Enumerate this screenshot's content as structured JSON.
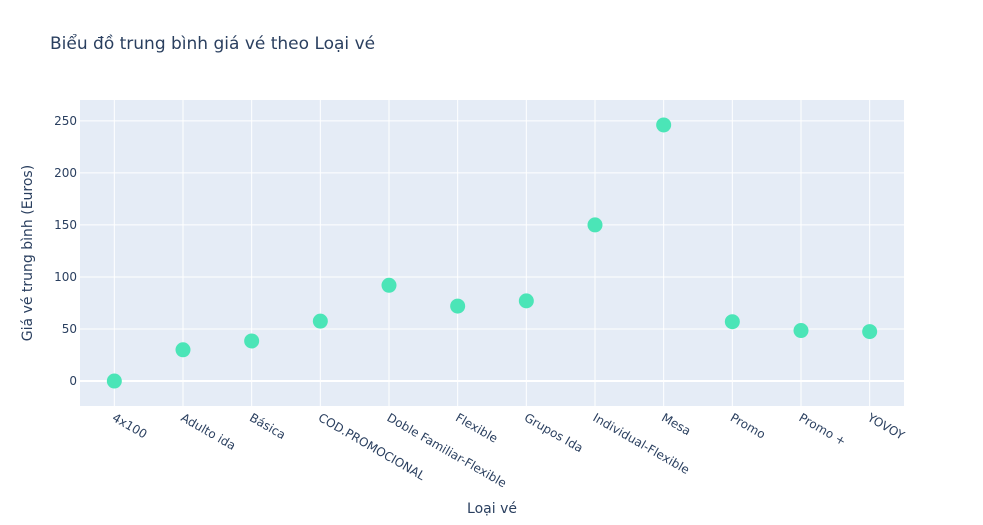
{
  "chart_data": {
    "type": "scatter",
    "title": "Biểu đồ trung bình giá vé theo Loại vé",
    "xlabel": "Loại vé",
    "ylabel": "Giá vé trung bình (Euros)",
    "categories": [
      "4x100",
      "Adulto ida",
      "Básica",
      "COD.PROMOCIONAL",
      "Doble Familiar-Flexible",
      "Flexible",
      "Grupos Ida",
      "Individual-Flexible",
      "Mesa",
      "Promo",
      "Promo +",
      "YOVOY"
    ],
    "values": [
      0,
      30,
      38.5,
      57.5,
      92,
      72,
      77,
      150,
      246,
      57,
      48.5,
      47.5
    ],
    "ylim": [
      -24,
      270
    ],
    "yticks": [
      0,
      50,
      100,
      150,
      200,
      250
    ],
    "grid": true,
    "legend": "none",
    "colors": {
      "marker": "#4be5b7",
      "plot_bg": "#e5ecf6",
      "grid": "#ffffff",
      "text": "#2a3f5f"
    }
  }
}
